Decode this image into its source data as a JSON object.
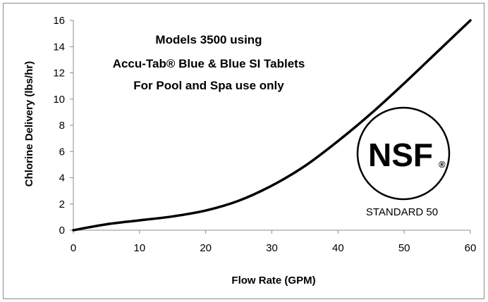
{
  "chart_data": {
    "type": "line",
    "title_lines": [
      "Models 3500 using",
      "Accu-Tab® Blue & Blue SI Tablets",
      "For Pool and Spa use only"
    ],
    "xlabel": "Flow Rate (GPM)",
    "ylabel": "Chlorine Delivery (lbs/hr)",
    "xlim": [
      0,
      60
    ],
    "ylim": [
      0,
      16
    ],
    "xticks": [
      "0",
      "10",
      "20",
      "30",
      "40",
      "50",
      "60"
    ],
    "yticks": [
      "0",
      "2",
      "4",
      "6",
      "8",
      "10",
      "12",
      "14",
      "16"
    ],
    "grid": false,
    "series": [
      {
        "x": [
          0,
          5,
          10,
          15,
          20,
          25,
          30,
          35,
          40,
          45,
          50,
          55,
          60
        ],
        "y": [
          0,
          0.45,
          0.75,
          1.05,
          1.5,
          2.25,
          3.4,
          4.9,
          6.8,
          8.9,
          11.2,
          13.6,
          16
        ]
      }
    ],
    "color": "#000000"
  },
  "logo": {
    "text": "NSF",
    "registered": "®",
    "standard": "STANDARD 50"
  }
}
